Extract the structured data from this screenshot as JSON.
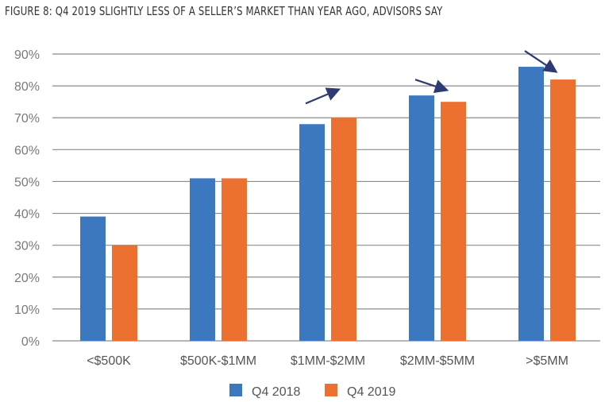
{
  "chart_data": {
    "type": "bar",
    "title": "FIGURE 8: Q4 2019 SLIGHTLY LESS OF A SELLER’S MARKET THAN YEAR AGO, ADVISORS SAY",
    "xlabel": "",
    "ylabel": "",
    "categories": [
      "<$500K",
      "$500K-$1MM",
      "$1MM-$2MM",
      "$2MM-$5MM",
      ">$5MM"
    ],
    "series": [
      {
        "name": "Q4 2018",
        "color": "#3b78c0",
        "values": [
          39,
          51,
          68,
          77,
          86
        ]
      },
      {
        "name": "Q4 2019",
        "color": "#ec7030",
        "values": [
          30,
          51,
          70,
          75,
          82
        ]
      }
    ],
    "ylim": [
      0,
      90
    ],
    "yticks": [
      0,
      10,
      20,
      30,
      40,
      50,
      60,
      70,
      80,
      90
    ],
    "ytick_labels": [
      "0%",
      "10%",
      "20%",
      "30%",
      "40%",
      "50%",
      "60%",
      "70%",
      "80%",
      "90%"
    ],
    "grid": true,
    "legend": "bottom-center",
    "annotations": [
      {
        "type": "arrow",
        "category": "$1MM-$2MM",
        "direction": "up",
        "color": "#2e3a73"
      },
      {
        "type": "arrow",
        "category": "$2MM-$5MM",
        "direction": "down",
        "color": "#2e3a73"
      },
      {
        "type": "arrow",
        "category": ">$5MM",
        "direction": "down",
        "color": "#2e3a73"
      }
    ]
  }
}
